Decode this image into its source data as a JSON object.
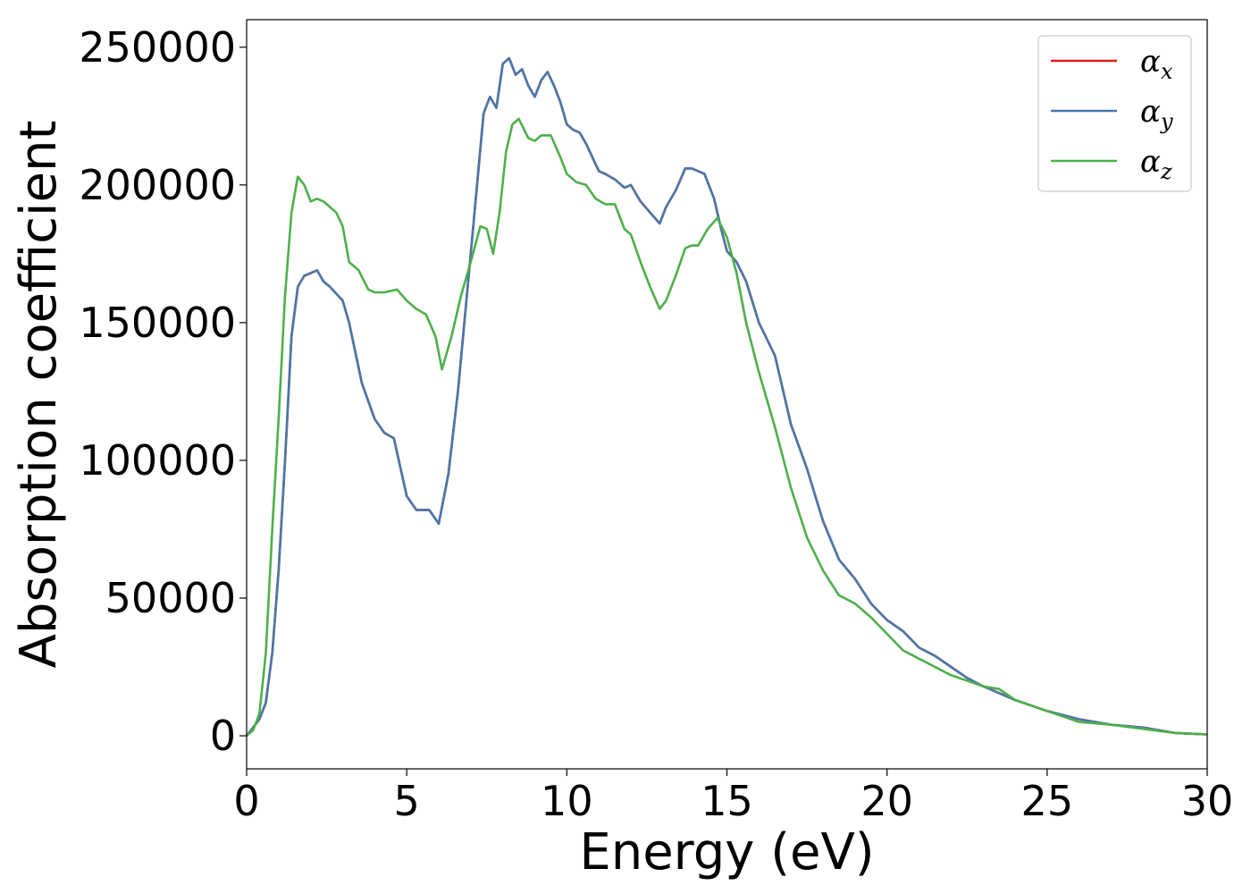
{
  "chart_data": {
    "type": "line",
    "xlabel": "Energy (eV)",
    "ylabel": "Absorption coefficient",
    "xlim": [
      0,
      30
    ],
    "ylim": [
      -12000,
      260000
    ],
    "xticks": [
      0,
      5,
      10,
      15,
      20,
      25,
      30
    ],
    "xtick_labels": [
      "0",
      "5",
      "10",
      "15",
      "20",
      "25",
      "30"
    ],
    "yticks": [
      0,
      50000,
      100000,
      150000,
      200000,
      250000
    ],
    "ytick_labels": [
      "0",
      "50000",
      "100000",
      "150000",
      "200000",
      "250000"
    ],
    "grid": false,
    "legend_position": "top-right",
    "series": [
      {
        "name": "α",
        "subscript": "x",
        "color": "#e41a1c",
        "x": [
          0,
          0.2,
          0.4,
          0.6,
          0.8,
          1.0,
          1.2,
          1.4,
          1.6,
          1.8,
          2.0,
          2.2,
          2.4,
          2.6,
          3.0,
          3.2,
          3.6,
          4.0,
          4.3,
          4.6,
          5.0,
          5.3,
          5.7,
          6.0,
          6.3,
          6.6,
          7.0,
          7.4,
          7.6,
          7.8,
          8.0,
          8.2,
          8.4,
          8.6,
          8.8,
          9.0,
          9.2,
          9.4,
          9.6,
          9.8,
          10.0,
          10.2,
          10.4,
          10.6,
          10.8,
          11.0,
          11.2,
          11.5,
          11.8,
          12.0,
          12.3,
          12.6,
          12.9,
          13.1,
          13.4,
          13.7,
          13.9,
          14.1,
          14.3,
          14.6,
          14.8,
          15.0,
          15.3,
          15.6,
          16.0,
          16.5,
          17.0,
          17.5,
          18.0,
          18.5,
          19.0,
          19.5,
          20.0,
          20.5,
          21.0,
          21.5,
          22.0,
          22.5,
          23.0,
          24.0,
          25.0,
          26.0,
          27.0,
          28.0,
          29.0,
          30.0
        ],
        "y": [
          0,
          3000,
          6000,
          12000,
          30000,
          60000,
          100000,
          145000,
          163000,
          167000,
          168000,
          169000,
          165000,
          163000,
          158000,
          150000,
          128000,
          115000,
          110000,
          108000,
          87000,
          82000,
          82000,
          77000,
          95000,
          125000,
          175000,
          226000,
          232000,
          228000,
          244000,
          246000,
          240000,
          242000,
          236000,
          232000,
          238000,
          241000,
          236000,
          230000,
          222000,
          220000,
          219000,
          215000,
          210000,
          205000,
          204000,
          202000,
          199000,
          200000,
          194000,
          190000,
          186000,
          192000,
          198000,
          206000,
          206000,
          205000,
          204000,
          195000,
          185000,
          176000,
          172000,
          165000,
          150000,
          138000,
          113000,
          97000,
          78000,
          64000,
          57000,
          48000,
          42000,
          38000,
          32000,
          29000,
          25000,
          21000,
          18000,
          13000,
          9000,
          6000,
          4000,
          3000,
          1000,
          500
        ]
      },
      {
        "name": "α",
        "subscript": "y",
        "color": "#4878a8",
        "x": [
          0,
          0.2,
          0.4,
          0.6,
          0.8,
          1.0,
          1.2,
          1.4,
          1.6,
          1.8,
          2.0,
          2.2,
          2.4,
          2.6,
          3.0,
          3.2,
          3.6,
          4.0,
          4.3,
          4.6,
          5.0,
          5.3,
          5.7,
          6.0,
          6.3,
          6.6,
          7.0,
          7.4,
          7.6,
          7.8,
          8.0,
          8.2,
          8.4,
          8.6,
          8.8,
          9.0,
          9.2,
          9.4,
          9.6,
          9.8,
          10.0,
          10.2,
          10.4,
          10.6,
          10.8,
          11.0,
          11.2,
          11.5,
          11.8,
          12.0,
          12.3,
          12.6,
          12.9,
          13.1,
          13.4,
          13.7,
          13.9,
          14.1,
          14.3,
          14.6,
          14.8,
          15.0,
          15.3,
          15.6,
          16.0,
          16.5,
          17.0,
          17.5,
          18.0,
          18.5,
          19.0,
          19.5,
          20.0,
          20.5,
          21.0,
          21.5,
          22.0,
          22.5,
          23.0,
          24.0,
          25.0,
          26.0,
          27.0,
          28.0,
          29.0,
          30.0
        ],
        "y": [
          0,
          3000,
          6000,
          12000,
          30000,
          60000,
          100000,
          145000,
          163000,
          167000,
          168000,
          169000,
          165000,
          163000,
          158000,
          150000,
          128000,
          115000,
          110000,
          108000,
          87000,
          82000,
          82000,
          77000,
          95000,
          125000,
          175000,
          226000,
          232000,
          228000,
          244000,
          246000,
          240000,
          242000,
          236000,
          232000,
          238000,
          241000,
          236000,
          230000,
          222000,
          220000,
          219000,
          215000,
          210000,
          205000,
          204000,
          202000,
          199000,
          200000,
          194000,
          190000,
          186000,
          192000,
          198000,
          206000,
          206000,
          205000,
          204000,
          195000,
          185000,
          176000,
          172000,
          165000,
          150000,
          138000,
          113000,
          97000,
          78000,
          64000,
          57000,
          48000,
          42000,
          38000,
          32000,
          29000,
          25000,
          21000,
          18000,
          13000,
          9000,
          6000,
          4000,
          3000,
          1000,
          500
        ]
      },
      {
        "name": "α",
        "subscript": "z",
        "color": "#4daf4a",
        "x": [
          0,
          0.2,
          0.4,
          0.6,
          0.8,
          1.0,
          1.2,
          1.4,
          1.6,
          1.8,
          2.0,
          2.2,
          2.4,
          2.6,
          2.8,
          3.0,
          3.2,
          3.5,
          3.8,
          4.0,
          4.3,
          4.7,
          5.0,
          5.3,
          5.6,
          5.9,
          6.1,
          6.4,
          6.7,
          7.0,
          7.3,
          7.5,
          7.7,
          7.9,
          8.1,
          8.3,
          8.5,
          8.8,
          9.0,
          9.2,
          9.5,
          9.8,
          10.0,
          10.3,
          10.6,
          10.9,
          11.2,
          11.5,
          11.8,
          12.0,
          12.3,
          12.6,
          12.9,
          13.1,
          13.4,
          13.7,
          13.9,
          14.1,
          14.4,
          14.7,
          15.0,
          15.3,
          15.6,
          16.0,
          16.5,
          17.0,
          17.5,
          18.0,
          18.5,
          19.0,
          19.5,
          20.0,
          20.5,
          21.0,
          21.5,
          22.0,
          22.5,
          23.0,
          23.5,
          24.0,
          25.0,
          26.0,
          27.0,
          28.0,
          29.0,
          30.0
        ],
        "y": [
          0,
          2000,
          8000,
          30000,
          75000,
          115000,
          160000,
          190000,
          203000,
          200000,
          194000,
          195000,
          194000,
          192000,
          190000,
          185000,
          172000,
          169000,
          162000,
          161000,
          161000,
          162000,
          158000,
          155000,
          153000,
          145000,
          133000,
          145000,
          160000,
          172000,
          185000,
          184000,
          175000,
          190000,
          212000,
          222000,
          224000,
          217000,
          216000,
          218000,
          218000,
          210000,
          204000,
          201000,
          200000,
          195000,
          193000,
          193000,
          184000,
          182000,
          172000,
          163000,
          155000,
          158000,
          167000,
          177000,
          178000,
          178000,
          184000,
          188000,
          181000,
          168000,
          150000,
          132000,
          112000,
          90000,
          72000,
          60000,
          51000,
          48000,
          43000,
          37000,
          31000,
          28000,
          25000,
          22000,
          20000,
          18000,
          17000,
          13000,
          9000,
          5000,
          4000,
          2500,
          1000,
          500
        ]
      }
    ]
  }
}
